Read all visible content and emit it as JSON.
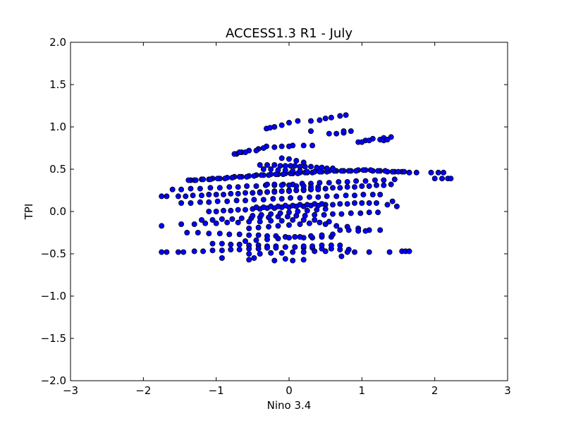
{
  "chart_data": {
    "type": "scatter",
    "title": "ACCESS1.3 R1 - July",
    "xlabel": "Nino 3.4",
    "ylabel": "TPI",
    "xlim": [
      -3,
      3
    ],
    "ylim": [
      -2.0,
      2.0
    ],
    "xticks": [
      -3,
      -2,
      -1,
      0,
      1,
      2,
      3
    ],
    "xtick_labels": [
      "−3",
      "−2",
      "−1",
      "0",
      "1",
      "2",
      "3"
    ],
    "yticks": [
      -2.0,
      -1.5,
      -1.0,
      -0.5,
      0.0,
      0.5,
      1.0,
      1.5,
      2.0
    ],
    "ytick_labels": [
      "−2.0",
      "−1.5",
      "−1.0",
      "−0.5",
      "0.0",
      "0.5",
      "1.0",
      "1.5",
      "2.0"
    ],
    "grid": false,
    "marker_color": "#0000ff",
    "marker_edge_color": "#000000",
    "series": [
      {
        "x": [
          -0.31,
          -0.26,
          -0.2,
          -0.1,
          0.0,
          0.12,
          0.3,
          0.42,
          0.5,
          0.58,
          0.7,
          0.78,
          -0.72,
          -0.65,
          -0.55,
          -0.42,
          -0.31,
          -0.1,
          0.05,
          0.3,
          0.65,
          0.75,
          0.95,
          1.05,
          1.15,
          1.25,
          1.3,
          1.4,
          -0.75,
          -0.68,
          -0.6,
          -0.45,
          -0.35,
          -0.2,
          0.0,
          0.2,
          0.32,
          0.55,
          0.75,
          0.85,
          1.0,
          1.1,
          1.3,
          1.35,
          -1.35,
          -1.3,
          -1.2,
          -1.1,
          -1.05,
          -0.95,
          -0.85,
          -0.75,
          -0.65,
          -0.55,
          -0.45,
          -0.35,
          -0.25,
          -0.15,
          -0.05,
          0.05,
          0.15,
          0.25,
          0.35,
          0.45,
          0.55,
          0.65,
          0.75,
          0.85,
          0.95,
          1.05,
          1.15,
          1.25,
          1.35,
          1.45,
          1.55,
          1.65,
          1.75,
          1.95,
          2.05,
          2.12,
          -1.38,
          -1.28,
          -1.18,
          -1.08,
          -0.98,
          -0.88,
          -0.78,
          -0.68,
          -0.58,
          -0.48,
          -0.38,
          -0.28,
          -0.18,
          -0.08,
          0.02,
          0.12,
          0.22,
          0.32,
          0.42,
          0.52,
          0.62,
          0.72,
          0.82,
          0.92,
          1.02,
          1.12,
          1.22,
          1.32,
          1.42,
          1.5,
          1.58,
          1.65,
          2.0,
          2.1,
          2.18,
          2.22,
          -1.75,
          -1.68,
          -1.52,
          -1.42,
          -1.32,
          -1.2,
          -1.1,
          -1.0,
          -0.9,
          -0.8,
          -0.7,
          -0.6,
          -0.5,
          -0.4,
          -0.3,
          -0.2,
          -0.1,
          0.0,
          0.1,
          0.2,
          0.3,
          0.4,
          0.5,
          0.6,
          0.7,
          0.8,
          0.9,
          1.0,
          1.1,
          1.2,
          1.3,
          1.4,
          -1.6,
          -1.48,
          -1.35,
          -1.22,
          -1.08,
          -0.95,
          -0.82,
          -0.7,
          -0.58,
          -0.45,
          -0.32,
          -0.2,
          -0.08,
          0.05,
          0.18,
          0.3,
          0.42,
          0.55,
          0.68,
          0.8,
          0.92,
          1.05,
          1.18,
          1.3,
          1.45,
          -1.48,
          -1.35,
          -1.22,
          -1.1,
          -0.98,
          -0.85,
          -0.72,
          -0.6,
          -0.48,
          -0.35,
          -0.22,
          -0.1,
          0.02,
          0.15,
          0.28,
          0.4,
          0.52,
          0.65,
          0.78,
          0.9,
          1.02,
          1.15,
          1.25,
          1.42,
          -1.1,
          -1.0,
          -0.9,
          -0.8,
          -0.7,
          -0.6,
          -0.5,
          -0.4,
          -0.3,
          -0.2,
          -0.1,
          0.0,
          0.1,
          0.2,
          0.3,
          0.4,
          0.5,
          0.6,
          0.7,
          0.8,
          0.9,
          1.0,
          1.1,
          1.2,
          1.35,
          1.48,
          -1.2,
          -1.05,
          -0.92,
          -0.78,
          -0.65,
          -0.52,
          -0.4,
          -0.28,
          -0.15,
          -0.02,
          0.1,
          0.22,
          0.35,
          0.48,
          0.6,
          0.72,
          0.85,
          0.98,
          1.1,
          1.22,
          -1.75,
          -1.48,
          -1.3,
          -1.15,
          -1.0,
          -0.85,
          -0.7,
          -0.55,
          -0.4,
          -0.25,
          -0.1,
          0.05,
          0.2,
          0.35,
          0.5,
          0.65,
          0.8,
          0.95,
          1.1,
          1.25,
          -1.4,
          -1.25,
          -1.1,
          -0.95,
          -0.82,
          -0.68,
          -0.55,
          -0.42,
          -0.3,
          -0.18,
          -0.05,
          0.08,
          0.2,
          0.32,
          0.45,
          0.58,
          0.7,
          0.82,
          0.95,
          1.05,
          -1.05,
          -0.92,
          -0.8,
          -0.68,
          -0.55,
          -0.42,
          -0.3,
          -0.18,
          -0.05,
          0.08,
          0.2,
          0.32,
          0.45,
          0.58,
          0.7,
          0.82,
          -1.75,
          -1.68,
          -1.52,
          -1.45,
          -1.3,
          -1.18,
          -1.05,
          -0.92,
          -0.8,
          -0.68,
          -0.55,
          -0.42,
          -0.3,
          -0.18,
          -0.05,
          0.08,
          0.2,
          0.32,
          0.45,
          0.58,
          0.7,
          0.8,
          0.9,
          1.1,
          1.38,
          1.55,
          1.6,
          1.65,
          -0.92,
          -0.55,
          -0.48,
          -0.2,
          -0.05,
          0.05,
          0.2,
          0.72,
          -0.4,
          -0.3,
          -0.2,
          -0.12,
          -0.05,
          0.02,
          0.08,
          0.15,
          0.22,
          0.3,
          0.38,
          0.45,
          0.52,
          0.6,
          0.0,
          -0.1,
          0.1,
          0.2,
          -0.35,
          -0.25,
          -0.15,
          -0.05,
          0.05,
          0.15,
          0.25,
          0.35,
          -0.3,
          -0.2,
          -0.1,
          0.0,
          0.1,
          0.2,
          0.3,
          0.4,
          -0.5,
          -0.4,
          -0.3,
          -0.2,
          -0.1,
          0.0,
          0.1,
          0.2,
          0.3,
          0.4,
          0.5,
          -0.45,
          -0.35,
          -0.25,
          -0.15,
          -0.05,
          0.05,
          0.15,
          0.25,
          0.35,
          0.45,
          -0.5,
          -0.38,
          -0.25,
          -0.12,
          0.0,
          0.12,
          0.25,
          0.38,
          0.5,
          -0.55,
          -0.42,
          -0.28,
          -0.15,
          0.0,
          0.15,
          0.28,
          0.42,
          0.55,
          -0.6,
          -0.45,
          -0.3,
          -0.15,
          0.0,
          0.15,
          0.3,
          0.45,
          0.6,
          -0.55,
          -0.4,
          -0.25,
          -0.1,
          0.05,
          0.2,
          0.35,
          0.5
        ],
        "y": [
          0.98,
          0.99,
          1.0,
          1.02,
          1.05,
          1.07,
          1.07,
          1.08,
          1.1,
          1.11,
          1.13,
          1.14,
          0.68,
          0.7,
          0.72,
          0.74,
          0.77,
          0.77,
          0.78,
          0.95,
          0.92,
          0.93,
          0.82,
          0.84,
          0.86,
          0.85,
          0.87,
          0.88,
          0.68,
          0.7,
          0.7,
          0.72,
          0.75,
          0.76,
          0.77,
          0.78,
          0.78,
          0.92,
          0.95,
          0.95,
          0.82,
          0.84,
          0.84,
          0.85,
          0.37,
          0.37,
          0.38,
          0.38,
          0.39,
          0.39,
          0.4,
          0.41,
          0.41,
          0.42,
          0.43,
          0.43,
          0.44,
          0.44,
          0.45,
          0.45,
          0.46,
          0.46,
          0.47,
          0.47,
          0.48,
          0.48,
          0.48,
          0.48,
          0.49,
          0.49,
          0.48,
          0.48,
          0.47,
          0.47,
          0.47,
          0.46,
          0.46,
          0.46,
          0.46,
          0.46,
          0.37,
          0.37,
          0.38,
          0.38,
          0.39,
          0.39,
          0.4,
          0.41,
          0.41,
          0.42,
          0.43,
          0.43,
          0.44,
          0.44,
          0.45,
          0.45,
          0.46,
          0.46,
          0.47,
          0.47,
          0.48,
          0.48,
          0.48,
          0.48,
          0.49,
          0.49,
          0.48,
          0.48,
          0.47,
          0.47,
          0.47,
          0.46,
          0.39,
          0.39,
          0.39,
          0.39,
          0.18,
          0.18,
          0.18,
          0.18,
          0.19,
          0.19,
          0.2,
          0.2,
          0.2,
          0.21,
          0.21,
          0.22,
          0.22,
          0.23,
          0.23,
          0.24,
          0.24,
          0.25,
          0.25,
          0.26,
          0.26,
          0.27,
          0.27,
          0.28,
          0.28,
          0.29,
          0.29,
          0.3,
          0.3,
          0.31,
          0.31,
          0.32,
          0.26,
          0.26,
          0.27,
          0.27,
          0.28,
          0.28,
          0.29,
          0.29,
          0.3,
          0.3,
          0.31,
          0.31,
          0.32,
          0.32,
          0.33,
          0.33,
          0.34,
          0.34,
          0.35,
          0.35,
          0.36,
          0.36,
          0.37,
          0.37,
          0.38,
          0.1,
          0.1,
          0.11,
          0.11,
          0.12,
          0.12,
          0.13,
          0.13,
          0.14,
          0.14,
          0.15,
          0.15,
          0.16,
          0.16,
          0.17,
          0.17,
          0.18,
          0.18,
          0.19,
          0.19,
          0.2,
          0.2,
          0.2,
          0.12,
          0.0,
          0.0,
          0.01,
          0.01,
          0.02,
          0.02,
          0.03,
          0.03,
          0.04,
          0.04,
          0.05,
          0.05,
          0.06,
          0.06,
          0.07,
          0.07,
          0.08,
          0.08,
          0.09,
          0.09,
          0.1,
          0.1,
          0.1,
          0.1,
          0.08,
          0.06,
          -0.1,
          -0.1,
          -0.09,
          -0.09,
          -0.08,
          -0.08,
          -0.07,
          -0.07,
          -0.06,
          -0.06,
          -0.05,
          -0.05,
          -0.04,
          -0.04,
          -0.03,
          -0.03,
          -0.02,
          -0.02,
          -0.01,
          -0.01,
          -0.17,
          -0.15,
          -0.15,
          -0.14,
          -0.14,
          -0.13,
          -0.13,
          -0.12,
          -0.12,
          -0.11,
          -0.11,
          -0.1,
          -0.1,
          -0.1,
          -0.15,
          -0.17,
          -0.18,
          -0.2,
          -0.22,
          -0.22,
          -0.25,
          -0.25,
          -0.26,
          -0.26,
          -0.27,
          -0.27,
          -0.28,
          -0.28,
          -0.29,
          -0.29,
          -0.3,
          -0.3,
          -0.31,
          -0.31,
          -0.3,
          -0.3,
          -0.22,
          -0.22,
          -0.23,
          -0.23,
          -0.38,
          -0.38,
          -0.39,
          -0.39,
          -0.4,
          -0.4,
          -0.41,
          -0.41,
          -0.42,
          -0.42,
          -0.43,
          -0.43,
          -0.44,
          -0.44,
          -0.45,
          -0.45,
          -0.48,
          -0.48,
          -0.48,
          -0.48,
          -0.47,
          -0.47,
          -0.46,
          -0.46,
          -0.45,
          -0.45,
          -0.44,
          -0.44,
          -0.43,
          -0.43,
          -0.42,
          -0.42,
          -0.41,
          -0.41,
          -0.4,
          -0.4,
          -0.4,
          -0.48,
          -0.48,
          -0.48,
          -0.48,
          -0.47,
          -0.47,
          -0.47,
          -0.55,
          -0.57,
          -0.55,
          -0.58,
          -0.56,
          -0.58,
          -0.57,
          -0.53,
          0.55,
          0.55,
          0.55,
          0.54,
          0.54,
          0.54,
          0.54,
          0.53,
          0.53,
          0.53,
          0.52,
          0.52,
          0.51,
          0.51,
          0.62,
          0.63,
          0.6,
          0.58,
          0.5,
          0.5,
          0.49,
          0.49,
          0.48,
          0.48,
          0.47,
          0.47,
          0.32,
          0.32,
          0.31,
          0.31,
          0.3,
          0.3,
          0.29,
          0.29,
          0.22,
          0.22,
          0.23,
          0.23,
          0.24,
          0.24,
          0.25,
          0.25,
          0.26,
          0.26,
          0.27,
          0.05,
          0.05,
          0.06,
          0.06,
          0.07,
          0.07,
          0.08,
          0.08,
          0.09,
          0.09,
          -0.05,
          -0.04,
          -0.03,
          -0.02,
          -0.01,
          0.0,
          0.01,
          0.02,
          0.03,
          -0.2,
          -0.19,
          -0.18,
          -0.17,
          -0.16,
          -0.15,
          -0.14,
          -0.13,
          -0.12,
          -0.35,
          -0.34,
          -0.33,
          -0.32,
          -0.31,
          -0.3,
          -0.29,
          -0.28,
          -0.27,
          -0.5,
          -0.5,
          -0.49,
          -0.49,
          -0.48,
          -0.48,
          -0.47,
          -0.47
        ]
      }
    ]
  }
}
